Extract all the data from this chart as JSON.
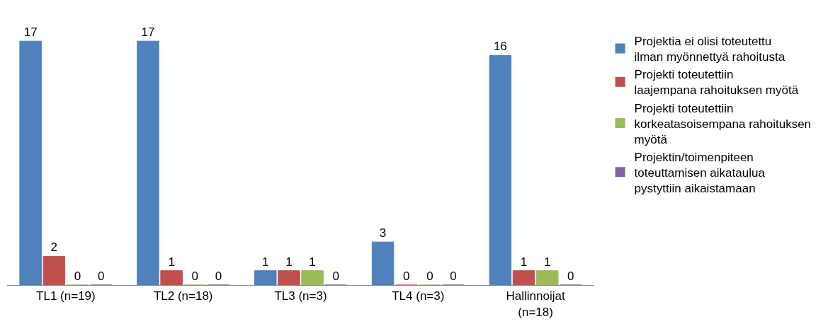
{
  "chart_data": {
    "type": "bar",
    "categories": [
      "TL1 (n=19)",
      "TL2 (n=18)",
      "TL3 (n=3)",
      "TL4 (n=3)",
      "Hallinnoijat (n=18)"
    ],
    "series": [
      {
        "name": "Projektia ei olisi toteutettu ilman myönnettyä rahoitusta",
        "color": "#4f81bd",
        "values": [
          17,
          17,
          1,
          3,
          16
        ]
      },
      {
        "name": "Projekti toteutettiin laajempana rahoituksen myötä",
        "color": "#c0504d",
        "values": [
          2,
          1,
          1,
          0,
          1
        ]
      },
      {
        "name": "Projekti toteutettiin korkeatasoisempana rahoituksen myötä",
        "color": "#9bbb59",
        "values": [
          0,
          0,
          1,
          0,
          1
        ]
      },
      {
        "name": "Projektin/toimenpiteen toteuttamisen aikataulua pystyttiin aikaistamaan",
        "color": "#8064a2",
        "values": [
          0,
          0,
          0,
          0,
          0
        ]
      }
    ],
    "data_labels": true,
    "legend": "right",
    "tick_labels": "x"
  }
}
